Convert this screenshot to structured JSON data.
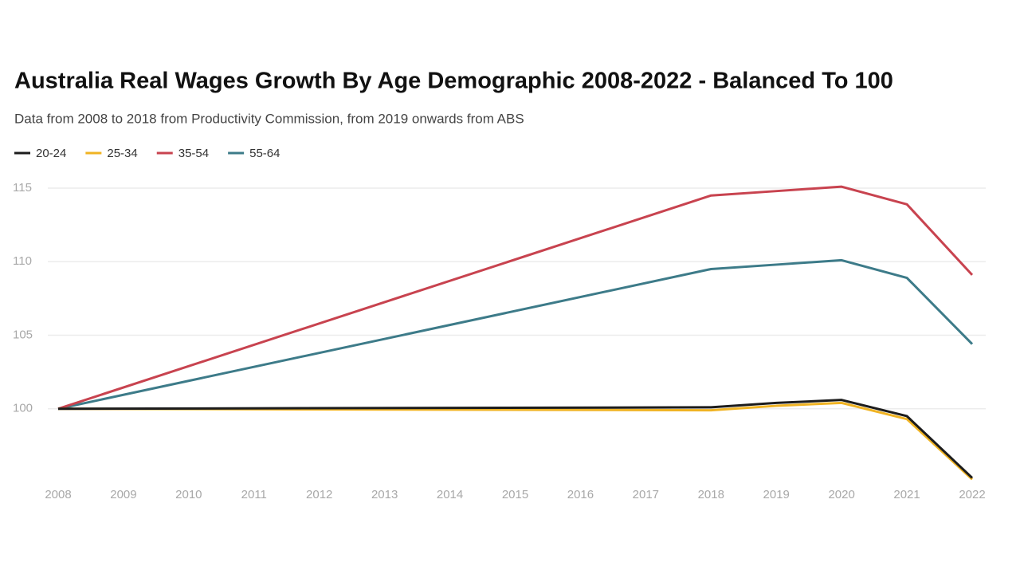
{
  "chart_data": {
    "type": "line",
    "title": "Australia Real Wages Growth By Age Demographic 2008-2022 - Balanced To 100",
    "subtitle": "Data from 2008 to 2018 from Productivity Commission, from 2019 onwards from ABS",
    "x": [
      2008,
      2018,
      2019,
      2020,
      2021,
      2022
    ],
    "series": [
      {
        "name": "20-24",
        "color": "#1c1c1c",
        "values": [
          100,
          100.1,
          100.4,
          100.6,
          99.5,
          95.3
        ]
      },
      {
        "name": "25-34",
        "color": "#f0b323",
        "values": [
          100,
          99.9,
          100.2,
          100.4,
          99.3,
          95.2
        ]
      },
      {
        "name": "35-54",
        "color": "#c8434f",
        "values": [
          100,
          114.5,
          114.8,
          115.1,
          113.9,
          109.1
        ]
      },
      {
        "name": "55-64",
        "color": "#3d7b89",
        "values": [
          100,
          109.5,
          109.8,
          110.1,
          108.9,
          104.4
        ]
      }
    ],
    "xlim": [
      2008,
      2022
    ],
    "xticks": [
      2008,
      2009,
      2010,
      2011,
      2012,
      2013,
      2014,
      2015,
      2016,
      2017,
      2018,
      2019,
      2020,
      2021,
      2022
    ],
    "ylim": [
      95,
      115
    ],
    "yticks": [
      100,
      105,
      110,
      115
    ],
    "grid": true,
    "legend": "top"
  }
}
